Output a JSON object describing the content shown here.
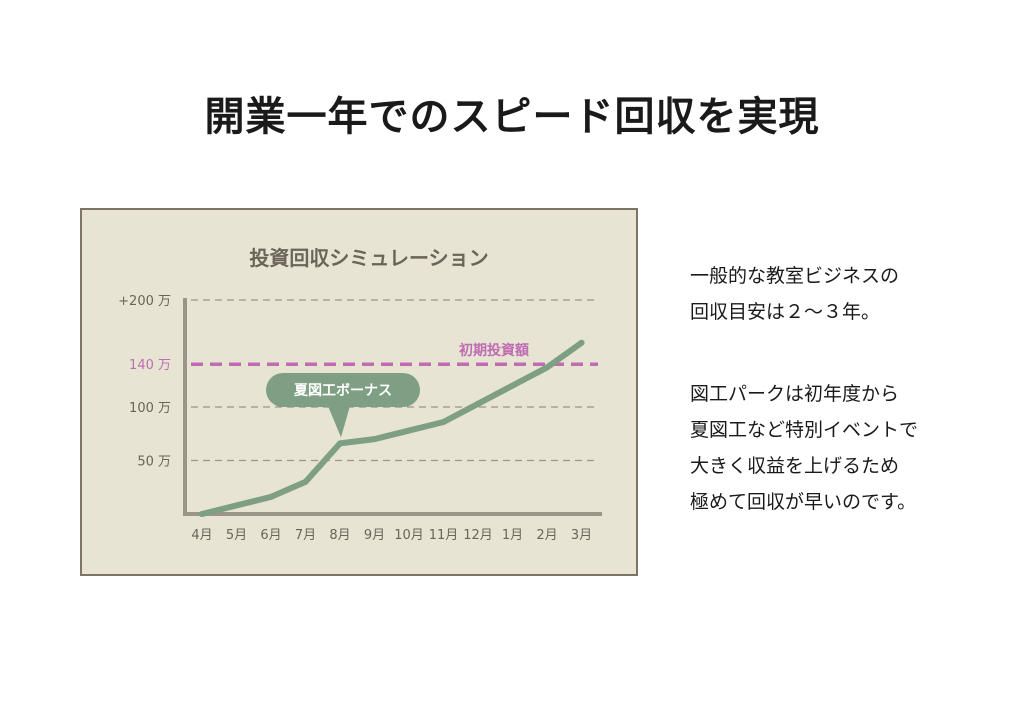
{
  "page": {
    "title": "開業一年でのスピード回収を実現"
  },
  "side_text": {
    "block1": [
      "一般的な教室ビジネスの",
      "回収目安は２〜３年。"
    ],
    "block2": [
      "図工パークは初年度から",
      "夏図工など特別イベントで",
      "大きく収益を上げるため",
      "極めて回収が早いのです。"
    ]
  },
  "colors": {
    "panel_bg": "#e7e4d3",
    "panel_border": "#7d7466",
    "line": "#7e9f84",
    "investment": "#c06cb3",
    "axis": "#9a948a",
    "grid": "#9a948a",
    "tick_text": "#6b6459",
    "title_text": "#6b6459"
  },
  "chart_data": {
    "type": "line",
    "title": "投資回収シミュレーション",
    "categories": [
      "4月",
      "5月",
      "6月",
      "7月",
      "8月",
      "9月",
      "10月",
      "11月",
      "12月",
      "1月",
      "2月",
      "3月"
    ],
    "values": [
      0,
      8,
      16,
      30,
      66,
      70,
      78,
      86,
      103,
      120,
      137,
      160
    ],
    "ylim": [
      0,
      200
    ],
    "y_ticks": [
      {
        "value": 50,
        "label": "50 万"
      },
      {
        "value": 100,
        "label": "100 万"
      },
      {
        "value": 140,
        "label": "140 万"
      },
      {
        "value": 200,
        "label": "+200 万"
      }
    ],
    "reference_line": {
      "value": 140,
      "label": "初期投資額"
    },
    "annotation": {
      "category": "8月",
      "label": "夏図工ボーナス"
    },
    "grid": "horizontal-dashed"
  }
}
